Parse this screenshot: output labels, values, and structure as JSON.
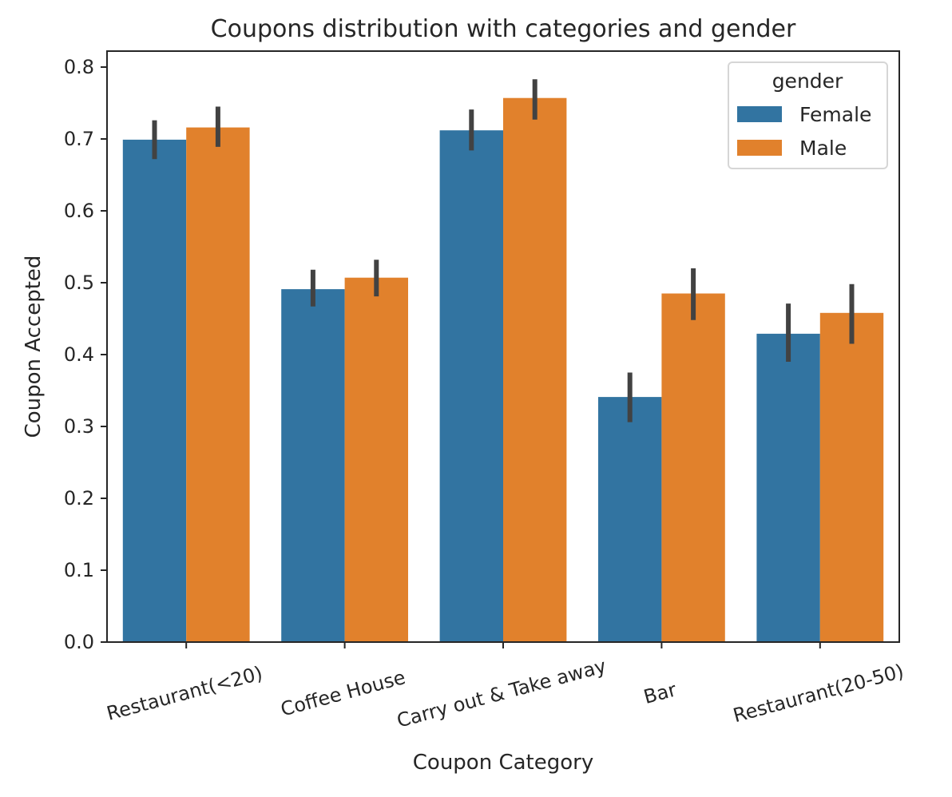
{
  "chart_data": {
    "type": "bar",
    "title": "Coupons distribution with categories and gender",
    "xlabel": "Coupon Category",
    "ylabel": "Coupon Accepted",
    "categories": [
      "Restaurant(<20)",
      "Coffee House",
      "Carry out & Take away",
      "Bar",
      "Restaurant(20-50)"
    ],
    "series": [
      {
        "name": "Female",
        "color": "#3274a1",
        "values": [
          0.699,
          0.491,
          0.712,
          0.341,
          0.429
        ],
        "ci_low": [
          0.672,
          0.467,
          0.684,
          0.306,
          0.39
        ],
        "ci_high": [
          0.726,
          0.518,
          0.741,
          0.375,
          0.471
        ]
      },
      {
        "name": "Male",
        "color": "#e1812c",
        "values": [
          0.716,
          0.507,
          0.757,
          0.485,
          0.458
        ],
        "ci_low": [
          0.689,
          0.481,
          0.727,
          0.448,
          0.415
        ],
        "ci_high": [
          0.745,
          0.532,
          0.783,
          0.52,
          0.498
        ]
      }
    ],
    "ylim": [
      0.0,
      0.8
    ],
    "yticks": [
      "0.0",
      "0.1",
      "0.2",
      "0.3",
      "0.4",
      "0.5",
      "0.6",
      "0.7",
      "0.8"
    ],
    "legend": {
      "title": "gender",
      "placement": "top-right"
    },
    "grid": false,
    "error_bars": true
  }
}
